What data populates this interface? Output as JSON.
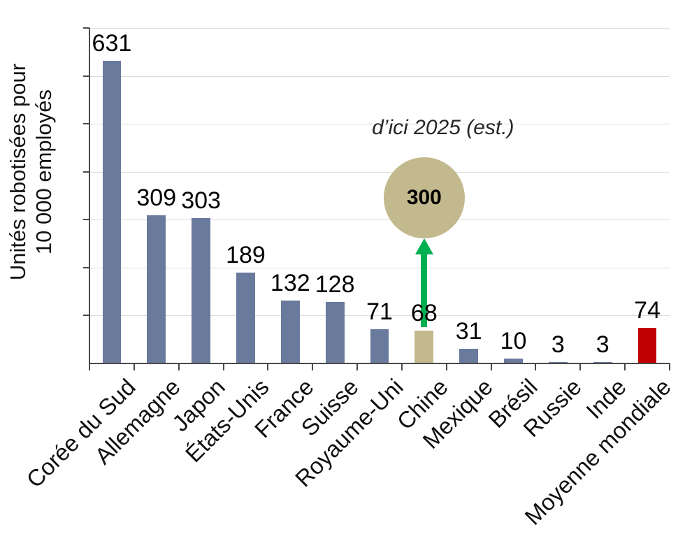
{
  "chart_data": {
    "type": "bar",
    "title": "",
    "ylabel": "Unités robotisées pour 10 000 employés",
    "ylabel_lines": [
      "Unités robotisées pour",
      "10 000 employés"
    ],
    "categories": [
      "Corée du Sud",
      "Allemagne",
      "Japon",
      "États-Unis",
      "France",
      "Suisse",
      "Royaume-Uni",
      "Chine",
      "Mexique",
      "Brésil",
      "Russie",
      "Inde",
      "Moyenne mondiale"
    ],
    "values": [
      631,
      309,
      303,
      189,
      132,
      128,
      71,
      68,
      31,
      10,
      3,
      3,
      74
    ],
    "ylim": [
      0,
      700
    ],
    "grid_step": 100,
    "grid": "on",
    "legend": "none",
    "xlabel": "",
    "bar_colors": [
      "#697a9d",
      "#697a9d",
      "#697a9d",
      "#697a9d",
      "#697a9d",
      "#697a9d",
      "#697a9d",
      "#c3b98e",
      "#697a9d",
      "#697a9d",
      "#697a9d",
      "#697a9d",
      "#c00000"
    ],
    "annotation": {
      "text": "d’ici 2025 (est.)",
      "value": "300",
      "target_category": "Chine",
      "circle_color": "#c3b98e",
      "arrow_color": "#00b050"
    }
  }
}
